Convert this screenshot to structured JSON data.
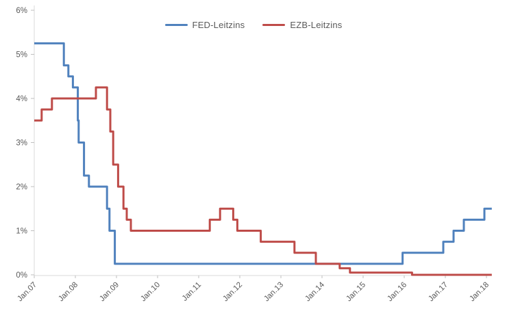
{
  "chart_data": {
    "type": "line",
    "subtype": "step",
    "title": "",
    "xlabel": "",
    "ylabel": "",
    "grid": false,
    "legend_position": "top-center",
    "ylim": [
      0,
      6
    ],
    "y_tick_labels": [
      "0%",
      "1%",
      "2%",
      "3%",
      "4%",
      "5%",
      "6%"
    ],
    "y_tick_values": [
      0,
      1,
      2,
      3,
      4,
      5,
      6
    ],
    "x_tick_labels": [
      "Jan.07",
      "Jan.08",
      "Jan.09",
      "Jan.10",
      "Jan.11",
      "Jan.12",
      "Jan.13",
      "Jan.14",
      "Jan.15",
      "Jan.16",
      "Jan.17",
      "Jan.18"
    ],
    "x_tick_years": [
      2007,
      2008,
      2009,
      2010,
      2011,
      2012,
      2013,
      2014,
      2015,
      2016,
      2017,
      2018
    ],
    "x_end": 2018.13,
    "series": [
      {
        "name": "FED-Leitzins",
        "color": "#4F81BD",
        "points": [
          [
            2007.0,
            5.25
          ],
          [
            2007.72,
            4.75
          ],
          [
            2007.83,
            4.5
          ],
          [
            2007.94,
            4.25
          ],
          [
            2008.06,
            3.5
          ],
          [
            2008.08,
            3.0
          ],
          [
            2008.21,
            2.25
          ],
          [
            2008.33,
            2.0
          ],
          [
            2008.77,
            1.5
          ],
          [
            2008.83,
            1.0
          ],
          [
            2008.96,
            0.25
          ],
          [
            2015.96,
            0.5
          ],
          [
            2016.95,
            0.75
          ],
          [
            2017.2,
            1.0
          ],
          [
            2017.45,
            1.25
          ],
          [
            2017.95,
            1.5
          ]
        ]
      },
      {
        "name": "EZB-Leitzins",
        "color": "#BE4B48",
        "points": [
          [
            2007.0,
            3.5
          ],
          [
            2007.18,
            3.75
          ],
          [
            2007.43,
            4.0
          ],
          [
            2008.5,
            4.25
          ],
          [
            2008.77,
            3.75
          ],
          [
            2008.85,
            3.25
          ],
          [
            2008.92,
            2.5
          ],
          [
            2009.04,
            2.0
          ],
          [
            2009.17,
            1.5
          ],
          [
            2009.25,
            1.25
          ],
          [
            2009.35,
            1.0
          ],
          [
            2011.27,
            1.25
          ],
          [
            2011.52,
            1.5
          ],
          [
            2011.84,
            1.25
          ],
          [
            2011.94,
            1.0
          ],
          [
            2012.51,
            0.75
          ],
          [
            2013.33,
            0.5
          ],
          [
            2013.85,
            0.25
          ],
          [
            2014.43,
            0.15
          ],
          [
            2014.68,
            0.05
          ],
          [
            2016.19,
            0.0
          ]
        ]
      }
    ]
  },
  "legend": {
    "items": [
      {
        "label": "FED-Leitzins"
      },
      {
        "label": "EZB-Leitzins"
      }
    ]
  },
  "colors": {
    "axis_line": "#D9D9D9",
    "tick_mark": "#BFBFBF",
    "tick_text": "#595959"
  }
}
